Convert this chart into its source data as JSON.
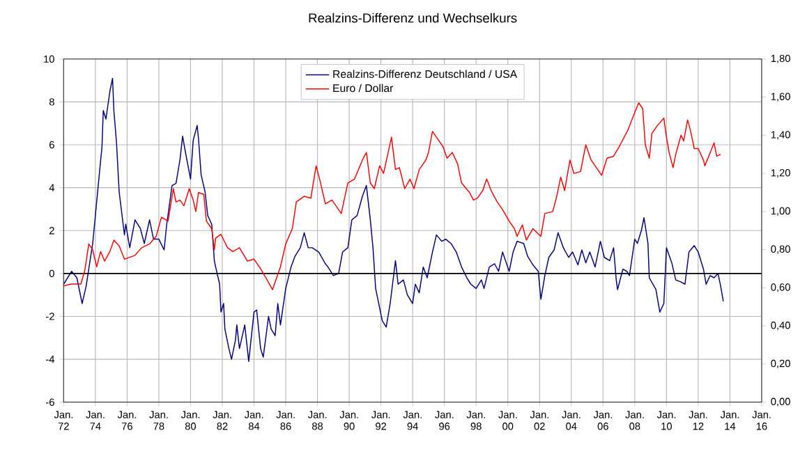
{
  "chart_data": {
    "type": "line",
    "title": "Realzins-Differenz und Wechselkurs",
    "xlim": [
      "1972-01",
      "2016-01"
    ],
    "xticks": [
      {
        "value": "1972-01",
        "label": "Jan. 72"
      },
      {
        "value": "1974-01",
        "label": "Jan. 74"
      },
      {
        "value": "1976-01",
        "label": "Jan. 76"
      },
      {
        "value": "1978-01",
        "label": "Jan. 78"
      },
      {
        "value": "1980-01",
        "label": "Jan. 80"
      },
      {
        "value": "1982-01",
        "label": "Jan. 82"
      },
      {
        "value": "1984-01",
        "label": "Jan. 84"
      },
      {
        "value": "1986-01",
        "label": "Jan. 86"
      },
      {
        "value": "1988-01",
        "label": "Jan. 88"
      },
      {
        "value": "1990-01",
        "label": "Jan. 90"
      },
      {
        "value": "1992-01",
        "label": "Jan. 92"
      },
      {
        "value": "1994-01",
        "label": "Jan. 94"
      },
      {
        "value": "1996-01",
        "label": "Jan. 96"
      },
      {
        "value": "1998-01",
        "label": "Jan. 98"
      },
      {
        "value": "2000-01",
        "label": "Jan. 00"
      },
      {
        "value": "2002-01",
        "label": "Jan. 02"
      },
      {
        "value": "2004-01",
        "label": "Jan. 04"
      },
      {
        "value": "2006-01",
        "label": "Jan. 06"
      },
      {
        "value": "2008-01",
        "label": "Jan. 08"
      },
      {
        "value": "2010-01",
        "label": "Jan. 10"
      },
      {
        "value": "2012-01",
        "label": "Jan. 12"
      },
      {
        "value": "2014-01",
        "label": "Jan. 14"
      },
      {
        "value": "2016-01",
        "label": "Jan. 16"
      }
    ],
    "ylim": [
      -6,
      10
    ],
    "yticks": [
      -6,
      -4,
      -2,
      0,
      2,
      4,
      6,
      8,
      10
    ],
    "y2lim": [
      0,
      1.8
    ],
    "y2ticks": [
      {
        "value": 0,
        "label": "0,00"
      },
      {
        "value": 0.2,
        "label": "0,20"
      },
      {
        "value": 0.4,
        "label": "0,40"
      },
      {
        "value": 0.6,
        "label": "0,60"
      },
      {
        "value": 0.8,
        "label": "0,80"
      },
      {
        "value": 1.0,
        "label": "1,00"
      },
      {
        "value": 1.2,
        "label": "1,20"
      },
      {
        "value": 1.4,
        "label": "1,40"
      },
      {
        "value": 1.6,
        "label": "1,60"
      },
      {
        "value": 1.8,
        "label": "1,80"
      }
    ],
    "grid": true,
    "legend": "top",
    "line_style": "solid",
    "marker": "none",
    "ref_lines": [
      {
        "axis": "y",
        "value": 0,
        "color": "#000000"
      }
    ],
    "series": [
      {
        "name": "Realzins-Differenz Deutschland / USA",
        "color": "#000080",
        "x": [
          "1972-01",
          "1972-07",
          "1972-11",
          "1973-03",
          "1973-06",
          "1973-08",
          "1973-11",
          "1974-03",
          "1974-06",
          "1974-07",
          "1974-09",
          "1974-12",
          "1975-02",
          "1975-03",
          "1975-05",
          "1975-07",
          "1975-08",
          "1975-11",
          "1975-12",
          "1976-03",
          "1976-07",
          "1976-11",
          "1977-02",
          "1977-06",
          "1977-09",
          "1978-01",
          "1978-05",
          "1978-07",
          "1978-11",
          "1979-02",
          "1979-05",
          "1979-07",
          "1979-09",
          "1980-01",
          "1980-03",
          "1980-06",
          "1980-07",
          "1980-09",
          "1980-12",
          "1981-02",
          "1981-05",
          "1981-07",
          "1981-08",
          "1981-11",
          "1981-12",
          "1982-02",
          "1982-03",
          "1982-06",
          "1982-08",
          "1982-11",
          "1982-12",
          "1983-02",
          "1983-06",
          "1983-09",
          "1984-01",
          "1984-03",
          "1984-06",
          "1984-08",
          "1984-12",
          "1985-02",
          "1985-05",
          "1985-07",
          "1985-09",
          "1986-01",
          "1986-05",
          "1986-08",
          "1986-12",
          "1987-03",
          "1987-06",
          "1987-09",
          "1988-02",
          "1988-07",
          "1988-09",
          "1989-01",
          "1989-05",
          "1989-08",
          "1989-12",
          "1990-03",
          "1990-07",
          "1990-11",
          "1991-02",
          "1991-05",
          "1991-07",
          "1991-09",
          "1991-12",
          "1992-02",
          "1992-05",
          "1992-08",
          "1992-12",
          "1993-02",
          "1993-06",
          "1993-09",
          "1994-01",
          "1994-03",
          "1994-06",
          "1994-09",
          "1994-12",
          "1995-04",
          "1995-07",
          "1995-11",
          "1996-02",
          "1996-06",
          "1996-10",
          "1997-02",
          "1997-06",
          "1997-09",
          "1998-01",
          "1998-05",
          "1998-07",
          "1998-11",
          "1999-03",
          "1999-06",
          "1999-09",
          "2000-02",
          "2000-05",
          "2000-08",
          "2001-01",
          "2001-04",
          "2001-08",
          "2001-12",
          "2002-02",
          "2002-05",
          "2002-08",
          "2002-12",
          "2003-03",
          "2003-07",
          "2003-11",
          "2004-02",
          "2004-06",
          "2004-09",
          "2004-12",
          "2005-03",
          "2005-07",
          "2005-11",
          "2006-02",
          "2006-06",
          "2006-09",
          "2006-11",
          "2006-12",
          "2007-04",
          "2007-07",
          "2007-09",
          "2008-01",
          "2008-03",
          "2008-06",
          "2008-08",
          "2008-11",
          "2008-12",
          "2009-05",
          "2009-08",
          "2009-11",
          "2010-01",
          "2010-05",
          "2010-08",
          "2010-12",
          "2011-03",
          "2011-06",
          "2011-10",
          "2012-01",
          "2012-05",
          "2012-07",
          "2012-10",
          "2013-01",
          "2013-04",
          "2013-06",
          "2013-08"
        ],
        "values": [
          -0.5,
          0.1,
          -0.2,
          -1.4,
          -0.6,
          0.2,
          1.4,
          4.0,
          5.9,
          7.6,
          7.2,
          8.5,
          9.1,
          7.6,
          6.1,
          3.8,
          3.3,
          1.8,
          2.3,
          1.2,
          2.5,
          2.1,
          1.4,
          2.5,
          1.6,
          1.6,
          1.1,
          2.3,
          4.1,
          4.2,
          5.3,
          6.4,
          5.7,
          4.4,
          6.2,
          6.9,
          6.3,
          4.6,
          3.8,
          2.7,
          2.3,
          0.6,
          0.3,
          -0.5,
          -1.8,
          -1.4,
          -2.6,
          -3.5,
          -4.0,
          -3.1,
          -2.4,
          -3.5,
          -2.4,
          -4.1,
          -1.8,
          -1.7,
          -3.5,
          -3.9,
          -2.0,
          -2.6,
          -2.9,
          -1.4,
          -2.4,
          -0.7,
          0.3,
          0.8,
          1.2,
          1.9,
          1.2,
          1.2,
          1.0,
          0.45,
          0.3,
          -0.1,
          0.0,
          1.0,
          1.2,
          2.5,
          2.7,
          3.6,
          4.1,
          2.5,
          1.2,
          -0.7,
          -1.6,
          -2.2,
          -2.5,
          -1.4,
          0.6,
          -0.5,
          -0.3,
          -1.0,
          -1.4,
          -0.5,
          -0.9,
          0.3,
          -0.2,
          1.0,
          1.8,
          1.5,
          1.6,
          1.4,
          1.0,
          0.3,
          -0.2,
          -0.5,
          -0.7,
          -0.3,
          -0.7,
          0.3,
          0.45,
          0.1,
          1.0,
          0.1,
          1.0,
          1.5,
          1.4,
          0.8,
          0.4,
          0.1,
          -1.2,
          -0.1,
          0.75,
          1.1,
          1.9,
          1.2,
          0.75,
          1.0,
          0.4,
          1.1,
          0.5,
          1.0,
          0.3,
          1.5,
          0.75,
          0.6,
          1.2,
          -0.3,
          -0.75,
          0.2,
          0.1,
          -0.1,
          1.6,
          1.4,
          2.0,
          2.6,
          1.4,
          -0.2,
          -0.75,
          -1.8,
          -1.4,
          1.2,
          0.5,
          -0.3,
          -0.4,
          -0.5,
          1.0,
          1.3,
          1.0,
          0.2,
          -0.5,
          -0.1,
          -0.2,
          0.0,
          -0.6,
          -1.3
        ]
      },
      {
        "name": "Euro / Dollar",
        "color": "#ff0000",
        "axis": "y2",
        "x": [
          "1972-01",
          "1972-07",
          "1973-02",
          "1973-05",
          "1973-08",
          "1973-11",
          "1974-02",
          "1974-05",
          "1974-08",
          "1974-12",
          "1975-03",
          "1975-07",
          "1975-11",
          "1976-03",
          "1976-07",
          "1976-12",
          "1977-06",
          "1977-11",
          "1978-03",
          "1978-08",
          "1978-12",
          "1979-02",
          "1979-05",
          "1979-08",
          "1979-12",
          "1980-03",
          "1980-05",
          "1980-07",
          "1980-11",
          "1981-01",
          "1981-05",
          "1981-07",
          "1981-08",
          "1981-12",
          "1982-05",
          "1982-09",
          "1983-02",
          "1983-08",
          "1984-01",
          "1984-06",
          "1984-11",
          "1985-03",
          "1985-06",
          "1985-09",
          "1986-01",
          "1986-06",
          "1986-09",
          "1987-03",
          "1987-08",
          "1987-12",
          "1988-03",
          "1988-07",
          "1988-12",
          "1989-03",
          "1989-07",
          "1989-12",
          "1990-05",
          "1990-11",
          "1991-02",
          "1991-05",
          "1991-08",
          "1991-12",
          "1992-03",
          "1992-09",
          "1992-12",
          "1993-03",
          "1993-07",
          "1993-11",
          "1994-02",
          "1994-06",
          "1994-11",
          "1995-01",
          "1995-04",
          "1995-07",
          "1995-12",
          "1996-03",
          "1996-07",
          "1996-11",
          "1997-02",
          "1997-08",
          "1997-11",
          "1998-02",
          "1998-06",
          "1998-09",
          "1999-01",
          "1999-05",
          "1999-09",
          "2000-02",
          "2000-06",
          "2000-08",
          "2000-12",
          "2001-03",
          "2001-08",
          "2002-02",
          "2002-05",
          "2002-11",
          "2003-02",
          "2003-05",
          "2003-08",
          "2003-12",
          "2004-03",
          "2004-08",
          "2004-12",
          "2005-04",
          "2005-09",
          "2005-12",
          "2006-04",
          "2006-09",
          "2007-02",
          "2007-08",
          "2008-01",
          "2008-04",
          "2008-07",
          "2008-09",
          "2008-12",
          "2009-02",
          "2009-06",
          "2009-11",
          "2010-01",
          "2010-03",
          "2010-06",
          "2010-08",
          "2010-12",
          "2011-02",
          "2011-05",
          "2011-07",
          "2011-10",
          "2012-01",
          "2012-05",
          "2012-06",
          "2012-09",
          "2013-01",
          "2013-03",
          "2013-06"
        ],
        "values": [
          0.61,
          0.62,
          0.62,
          0.69,
          0.83,
          0.8,
          0.71,
          0.79,
          0.74,
          0.79,
          0.85,
          0.82,
          0.75,
          0.76,
          0.77,
          0.81,
          0.83,
          0.87,
          0.97,
          0.95,
          1.12,
          1.05,
          1.06,
          1.03,
          1.12,
          1.06,
          1.0,
          1.1,
          1.09,
          0.95,
          0.91,
          0.8,
          0.86,
          0.88,
          0.81,
          0.79,
          0.81,
          0.74,
          0.75,
          0.7,
          0.64,
          0.59,
          0.65,
          0.71,
          0.83,
          0.91,
          1.05,
          1.08,
          1.07,
          1.24,
          1.16,
          1.04,
          1.06,
          1.03,
          0.99,
          1.15,
          1.17,
          1.27,
          1.31,
          1.15,
          1.12,
          1.24,
          1.2,
          1.39,
          1.22,
          1.23,
          1.12,
          1.17,
          1.12,
          1.22,
          1.27,
          1.31,
          1.42,
          1.39,
          1.34,
          1.28,
          1.31,
          1.25,
          1.15,
          1.1,
          1.06,
          1.07,
          1.11,
          1.17,
          1.1,
          1.05,
          1.01,
          0.95,
          0.91,
          0.87,
          0.93,
          0.85,
          0.91,
          0.87,
          0.99,
          1.0,
          1.08,
          1.18,
          1.11,
          1.27,
          1.2,
          1.21,
          1.35,
          1.27,
          1.22,
          1.19,
          1.28,
          1.29,
          1.35,
          1.43,
          1.52,
          1.57,
          1.54,
          1.35,
          1.28,
          1.41,
          1.45,
          1.49,
          1.39,
          1.31,
          1.23,
          1.3,
          1.4,
          1.37,
          1.48,
          1.43,
          1.33,
          1.33,
          1.27,
          1.24,
          1.29,
          1.36,
          1.29,
          1.3
        ]
      }
    ]
  }
}
